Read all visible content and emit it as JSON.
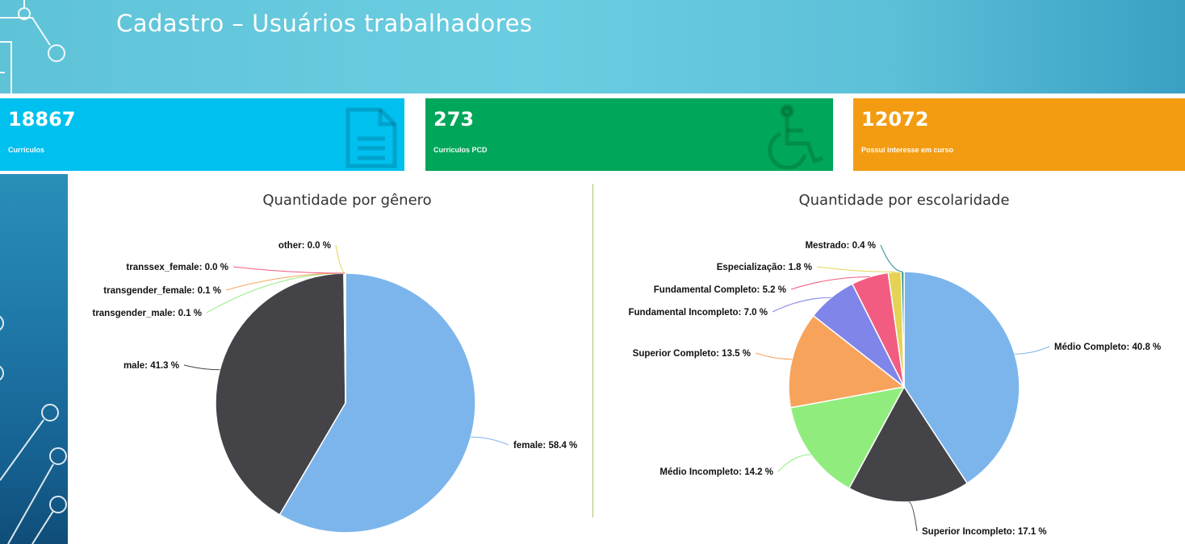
{
  "header": {
    "title": "Cadastro – Usuários trabalhadores"
  },
  "cards": [
    {
      "value": "18867",
      "label": "Currículos",
      "icon": "document-icon",
      "color": "#00c0ef"
    },
    {
      "value": "273",
      "label": "Currículos PCD",
      "icon": "wheelchair-icon",
      "color": "#00a65a"
    },
    {
      "value": "12072",
      "label": "Possui interesse em curso",
      "icon": "none",
      "color": "#f39c12"
    }
  ],
  "chart_data": [
    {
      "type": "pie",
      "title": "Quantidade por gênero",
      "slices": [
        {
          "name": "female",
          "value": 58.4,
          "label": "female: 58.4 %",
          "color": "#7cb5ec"
        },
        {
          "name": "male",
          "value": 41.3,
          "label": "male: 41.3 %",
          "color": "#434348"
        },
        {
          "name": "transgender_male",
          "value": 0.1,
          "label": "transgender_male: 0.1 %",
          "color": "#90ed7d"
        },
        {
          "name": "transgender_female",
          "value": 0.1,
          "label": "transgender_female: 0.1 %",
          "color": "#f7a35c"
        },
        {
          "name": "transsex_female",
          "value": 0.0,
          "label": "transsex_female: 0.0 %",
          "color": "#f15c80"
        },
        {
          "name": "other",
          "value": 0.0,
          "label": "other: 0.0 %",
          "color": "#e4d354"
        }
      ]
    },
    {
      "type": "pie",
      "title": "Quantidade por escolaridade",
      "slices": [
        {
          "name": "Médio Completo",
          "value": 40.8,
          "label": "Médio Completo: 40.8 %",
          "color": "#7cb5ec"
        },
        {
          "name": "Superior Incompleto",
          "value": 17.1,
          "label": "Superior Incompleto: 17.1 %",
          "color": "#434348"
        },
        {
          "name": "Médio Incompleto",
          "value": 14.2,
          "label": "Médio Incompleto: 14.2 %",
          "color": "#90ed7d"
        },
        {
          "name": "Superior Completo",
          "value": 13.5,
          "label": "Superior Completo: 13.5 %",
          "color": "#f7a35c"
        },
        {
          "name": "Fundamental Incompleto",
          "value": 7.0,
          "label": "Fundamental Incompleto: 7.0 %",
          "color": "#8085e9"
        },
        {
          "name": "Fundamental Completo",
          "value": 5.2,
          "label": "Fundamental Completo: 5.2 %",
          "color": "#f15c80"
        },
        {
          "name": "Especialização",
          "value": 1.8,
          "label": "Especialização: 1.8 %",
          "color": "#e4d354"
        },
        {
          "name": "Mestrado",
          "value": 0.4,
          "label": "Mestrado: 0.4 %",
          "color": "#2b908f"
        }
      ]
    }
  ]
}
